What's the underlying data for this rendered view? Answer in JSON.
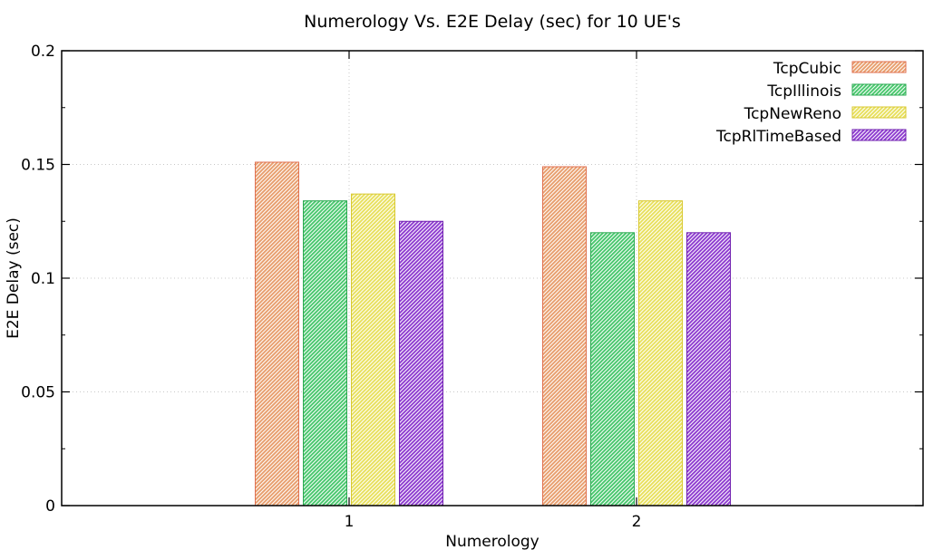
{
  "chart_data": {
    "type": "bar",
    "title": "Numerology Vs. E2E Delay (sec) for 10 UE's",
    "xlabel": "Numerology",
    "ylabel": "E2E Delay (sec)",
    "categories": [
      "1",
      "2"
    ],
    "ylim": [
      0,
      0.2
    ],
    "yticks": [
      "0",
      "0.05",
      "0.1",
      "0.15",
      "0.2"
    ],
    "grid": true,
    "legend_position": "top-right",
    "series": [
      {
        "name": "TcpCubic",
        "values": [
          0.151,
          0.149
        ],
        "color": "#e8a070",
        "stroke": "#e07050"
      },
      {
        "name": "TcpIllinois",
        "values": [
          0.134,
          0.12
        ],
        "color": "#4cc870",
        "stroke": "#2aa850"
      },
      {
        "name": "TcpNewReno",
        "values": [
          0.137,
          0.134
        ],
        "color": "#e8e060",
        "stroke": "#d8c830"
      },
      {
        "name": "TcpRlTimeBased",
        "values": [
          0.125,
          0.12
        ],
        "color": "#9040d0",
        "stroke": "#7020b0"
      }
    ]
  }
}
